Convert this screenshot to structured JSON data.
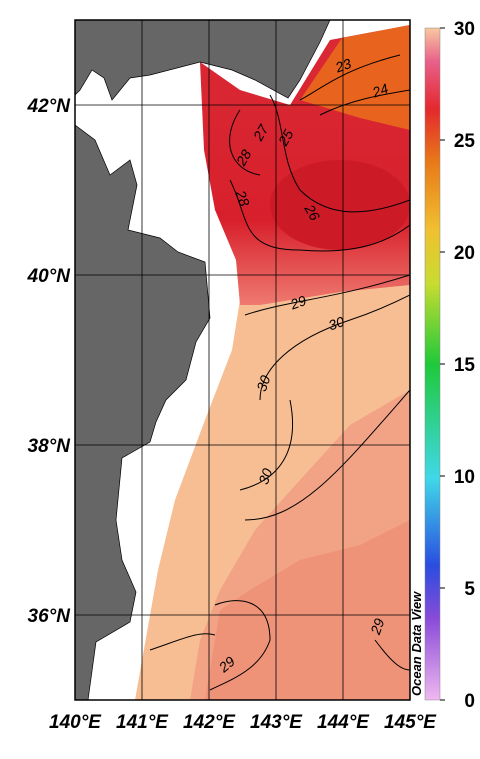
{
  "map": {
    "lat_ticks": [
      {
        "value": 42,
        "label": "42°N"
      },
      {
        "value": 40,
        "label": "40°N"
      },
      {
        "value": 38,
        "label": "38°N"
      },
      {
        "value": 36,
        "label": "36°N"
      }
    ],
    "lon_ticks": [
      {
        "value": 140,
        "label": "140°E"
      },
      {
        "value": 141,
        "label": "141°E"
      },
      {
        "value": 142,
        "label": "142°E"
      },
      {
        "value": 143,
        "label": "143°E"
      },
      {
        "value": 144,
        "label": "144°E"
      },
      {
        "value": 145,
        "label": "145°E"
      }
    ],
    "latlim": [
      35,
      43
    ],
    "lonlim": [
      140,
      145
    ],
    "colorbar": {
      "lim": [
        0,
        30
      ],
      "ticks": [
        0,
        5,
        10,
        15,
        20,
        25,
        30
      ]
    },
    "contour_labels": [
      23,
      24,
      27,
      25,
      28,
      28,
      26,
      29,
      30,
      30,
      30,
      29,
      29
    ],
    "watermark": "Ocean Data View"
  }
}
